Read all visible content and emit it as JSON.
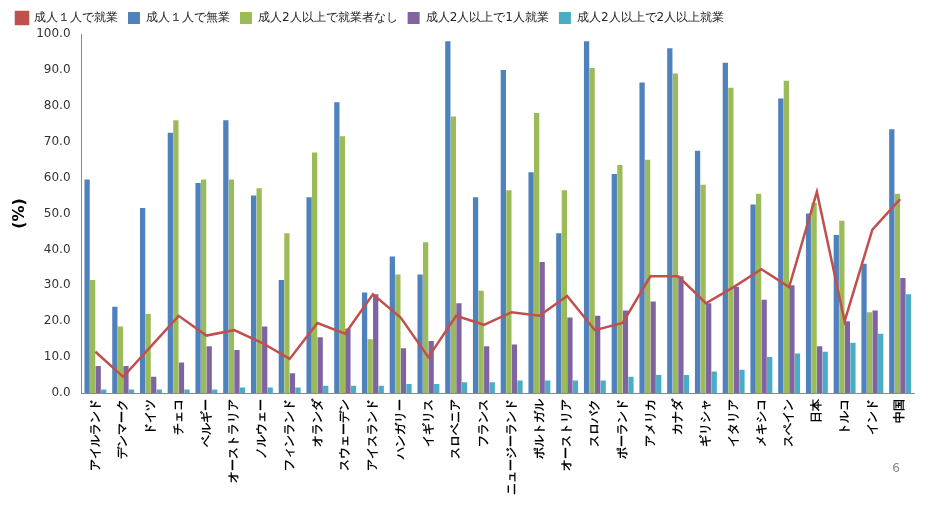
{
  "chart_data": {
    "type": "bar",
    "y_label": "(%)",
    "annotations": [
      "6"
    ],
    "categories": [
      "アイルランド",
      "デンマーク",
      "ドイツ",
      "チェコ",
      "ベルギー",
      "オーストラリア",
      "ノルウェー",
      "フィンランド",
      "オランダ",
      "スウェーデン",
      "アイスランド",
      "ハンガリー",
      "イギリス",
      "スロベニア",
      "フランス",
      "ニュージーランド",
      "ポルトガル",
      "オーストリア",
      "スロバク",
      "ポーランド",
      "アメリカ",
      "カナダ",
      "ギリシャ",
      "イタリア",
      "メキシコ",
      "スペイン",
      "日本",
      "トルコ",
      "インド",
      "中国"
    ],
    "series": [
      {
        "name": "成人１人で無業",
        "color": "#4f81bd",
        "type": "bar",
        "values": [
          59.5,
          24,
          51.5,
          72.5,
          58.5,
          76,
          55,
          31.5,
          54.5,
          81,
          28,
          38,
          33,
          98,
          54.5,
          90,
          61.5,
          44.5,
          98,
          61,
          86.5,
          96,
          67.5,
          92,
          52.5,
          82,
          50,
          44,
          36,
          73.5
        ]
      },
      {
        "name": "成人2人以上で就業者なし",
        "color": "#9bbb59",
        "type": "bar",
        "values": [
          31.5,
          18.5,
          22,
          76,
          59.5,
          59.5,
          57,
          44.5,
          67,
          71.5,
          15,
          33,
          42,
          77,
          28.5,
          56.5,
          78,
          56.5,
          90.5,
          63.5,
          65,
          89,
          58,
          85,
          55.5,
          87,
          53,
          48,
          22.5,
          55.5
        ]
      },
      {
        "name": "成人2人以上で1人就業",
        "color": "#8064a2",
        "type": "bar",
        "values": [
          7.5,
          7.5,
          4.5,
          8.5,
          13,
          12,
          18.5,
          5.5,
          15.5,
          18,
          27.5,
          12.5,
          14.5,
          25,
          13,
          13.5,
          36.5,
          21,
          21.5,
          23,
          25.5,
          32.5,
          25,
          29.5,
          26,
          30,
          13,
          20,
          23,
          32
        ]
      },
      {
        "name": "成人2人以上で2人以上就業",
        "color": "#4bacc6",
        "type": "bar",
        "values": [
          1,
          1,
          1,
          1,
          1,
          1.5,
          1.5,
          1.5,
          2,
          2,
          2,
          2.5,
          2.5,
          3,
          3,
          3.5,
          3.5,
          3.5,
          3.5,
          4.5,
          5,
          5,
          6,
          6.5,
          10,
          11,
          11.5,
          14,
          16.5,
          27.5
        ]
      },
      {
        "name": "成人１人で就業",
        "color": "#c0504d",
        "type": "line",
        "marker": "none",
        "line_style": "solid",
        "values": [
          11.5,
          4.5,
          13,
          21.5,
          16,
          17.5,
          14,
          9.5,
          19.5,
          16.5,
          27.5,
          21,
          10,
          21.5,
          19,
          22.5,
          21.5,
          27,
          17.5,
          19.5,
          32.5,
          32.5,
          25,
          29.5,
          34.5,
          29.5,
          56,
          20,
          45.5,
          54
        ]
      }
    ],
    "ylim": [
      0,
      100
    ],
    "yticks": [
      {
        "value": 0,
        "label": "0.0"
      },
      {
        "value": 10,
        "label": "10.0"
      },
      {
        "value": 20,
        "label": "20.0"
      },
      {
        "value": 30,
        "label": "30.0"
      },
      {
        "value": 40,
        "label": "40.0"
      },
      {
        "value": 50,
        "label": "50.0"
      },
      {
        "value": 60,
        "label": "60.0"
      },
      {
        "value": 70,
        "label": "70.0"
      },
      {
        "value": 80,
        "label": "80.0"
      },
      {
        "value": 90,
        "label": "90.0"
      },
      {
        "value": 100,
        "label": "100.0"
      }
    ],
    "grid": false,
    "legend": "top"
  }
}
